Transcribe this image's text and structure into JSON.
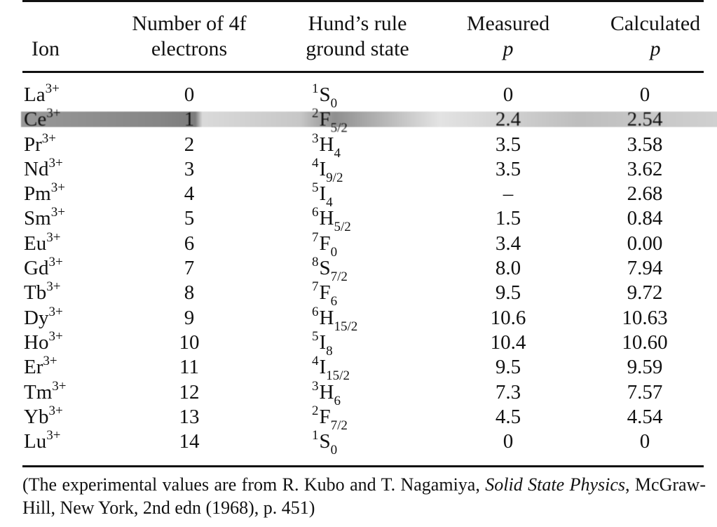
{
  "headers": {
    "ion": "Ion",
    "num_line1": "Number of 4f",
    "num_line2": "electrons",
    "hund_line1": "Hund’s rule",
    "hund_line2": "ground state",
    "meas_line1": "Measured",
    "meas_line2": "p",
    "calc_line1": "Calculated",
    "calc_line2": "p"
  },
  "rows": [
    {
      "ion": "La",
      "charge": "3+",
      "n": "0",
      "mult": "1",
      "term": "S",
      "j": "0",
      "meas": "0",
      "calc": "0"
    },
    {
      "ion": "Ce",
      "charge": "3+",
      "n": "1",
      "mult": "2",
      "term": "F",
      "j": "5/2",
      "meas": "2.4",
      "calc": "2.54"
    },
    {
      "ion": "Pr",
      "charge": "3+",
      "n": "2",
      "mult": "3",
      "term": "H",
      "j": "4",
      "meas": "3.5",
      "calc": "3.58"
    },
    {
      "ion": "Nd",
      "charge": "3+",
      "n": "3",
      "mult": "4",
      "term": "I",
      "j": "9/2",
      "meas": "3.5",
      "calc": "3.62"
    },
    {
      "ion": "Pm",
      "charge": "3+",
      "n": "4",
      "mult": "5",
      "term": "I",
      "j": "4",
      "meas": "–",
      "calc": "2.68"
    },
    {
      "ion": "Sm",
      "charge": "3+",
      "n": "5",
      "mult": "6",
      "term": "H",
      "j": "5/2",
      "meas": "1.5",
      "calc": "0.84"
    },
    {
      "ion": "Eu",
      "charge": "3+",
      "n": "6",
      "mult": "7",
      "term": "F",
      "j": "0",
      "meas": "3.4",
      "calc": "0.00"
    },
    {
      "ion": "Gd",
      "charge": "3+",
      "n": "7",
      "mult": "8",
      "term": "S",
      "j": "7/2",
      "meas": "8.0",
      "calc": "7.94"
    },
    {
      "ion": "Tb",
      "charge": "3+",
      "n": "8",
      "mult": "7",
      "term": "F",
      "j": "6",
      "meas": "9.5",
      "calc": "9.72"
    },
    {
      "ion": "Dy",
      "charge": "3+",
      "n": "9",
      "mult": "6",
      "term": "H",
      "j": "15/2",
      "meas": "10.6",
      "calc": "10.63"
    },
    {
      "ion": "Ho",
      "charge": "3+",
      "n": "10",
      "mult": "5",
      "term": "I",
      "j": "8",
      "meas": "10.4",
      "calc": "10.60"
    },
    {
      "ion": "Er",
      "charge": "3+",
      "n": "11",
      "mult": "4",
      "term": "I",
      "j": "15/2",
      "meas": "9.5",
      "calc": "9.59"
    },
    {
      "ion": "Tm",
      "charge": "3+",
      "n": "12",
      "mult": "3",
      "term": "H",
      "j": "6",
      "meas": "7.3",
      "calc": "7.57"
    },
    {
      "ion": "Yb",
      "charge": "3+",
      "n": "13",
      "mult": "2",
      "term": "F",
      "j": "7/2",
      "meas": "4.5",
      "calc": "4.54"
    },
    {
      "ion": "Lu",
      "charge": "3+",
      "n": "14",
      "mult": "1",
      "term": "S",
      "j": "0",
      "meas": "0",
      "calc": "0"
    }
  ],
  "note": {
    "prefix": "(The experimental values are from R. Kubo and T. Nagamiya, ",
    "title": "Solid State Physics",
    "suffix": ", McGraw-Hill, New York, 2nd edn (1968), p. 451)"
  }
}
